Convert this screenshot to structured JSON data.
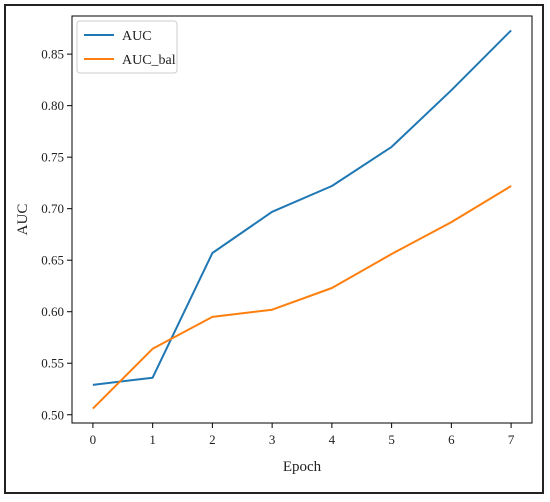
{
  "chart_data": {
    "type": "line",
    "title": "",
    "xlabel": "Epoch",
    "ylabel": "AUC",
    "x": [
      0,
      1,
      2,
      3,
      4,
      5,
      6,
      7
    ],
    "xlim": [
      -0.35,
      7.35
    ],
    "ylim": [
      0.492,
      0.887
    ],
    "xticks": [
      0,
      1,
      2,
      3,
      4,
      5,
      6,
      7
    ],
    "yticks": [
      0.5,
      0.55,
      0.6,
      0.65,
      0.7,
      0.75,
      0.8,
      0.85
    ],
    "ytick_labels": [
      "0.50",
      "0.55",
      "0.60",
      "0.65",
      "0.70",
      "0.75",
      "0.80",
      "0.85"
    ],
    "grid": false,
    "legend": "top-left",
    "series": [
      {
        "name": "AUC",
        "color": "#1f77b4",
        "values": [
          0.529,
          0.536,
          0.657,
          0.697,
          0.722,
          0.76,
          0.815,
          0.873
        ]
      },
      {
        "name": "AUC_bal",
        "color": "#ff7f0e",
        "values": [
          0.506,
          0.564,
          0.595,
          0.602,
          0.623,
          0.656,
          0.687,
          0.722
        ]
      }
    ]
  }
}
